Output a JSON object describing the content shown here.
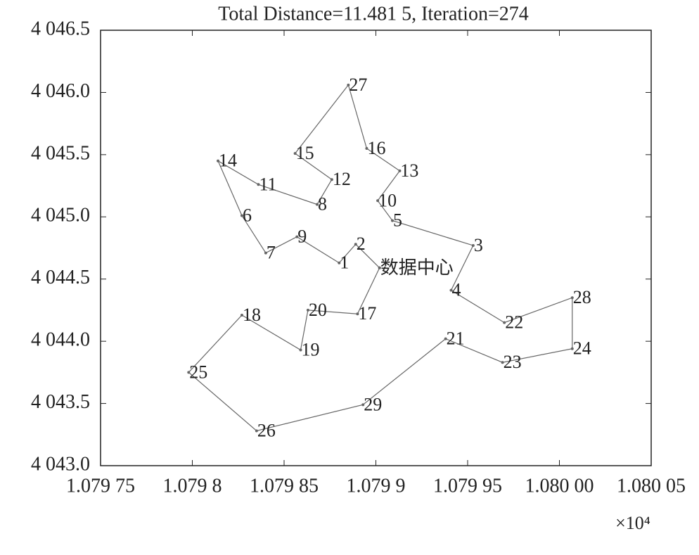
{
  "chart_data": {
    "type": "line",
    "title": "Total Distance=11.481 5, Iteration=274",
    "x_multiplier": "×10⁴",
    "color": "#666666",
    "point_labels": [
      "数据中心",
      "2",
      "1",
      "9",
      "7",
      "6",
      "14",
      "11",
      "8",
      "12",
      "15",
      "27",
      "16",
      "13",
      "10",
      "5",
      "3",
      "4",
      "22",
      "28",
      "24",
      "23",
      "21",
      "29",
      "26",
      "25",
      "18",
      "19",
      "20",
      "17",
      null
    ],
    "x": [
      1.079902,
      1.079889,
      1.07988,
      1.079857,
      1.07984,
      1.079827,
      1.079814,
      1.079836,
      1.079868,
      1.079876,
      1.079856,
      1.079885,
      1.079895,
      1.079913,
      1.079901,
      1.079909,
      1.079953,
      1.079941,
      1.07997,
      1.080007,
      1.080007,
      1.079969,
      1.079938,
      1.079893,
      1.079835,
      1.079798,
      1.079827,
      1.079859,
      1.079863,
      1.07989,
      1.079902
    ],
    "values": [
      4044.59,
      4044.78,
      4044.63,
      4044.84,
      4044.71,
      4045.01,
      4045.45,
      4045.26,
      4045.1,
      4045.3,
      4045.51,
      4046.06,
      4045.55,
      4045.37,
      4045.13,
      4044.97,
      4044.77,
      4044.41,
      4044.15,
      4044.35,
      4043.94,
      4043.83,
      4044.02,
      4043.49,
      4043.28,
      4043.75,
      4044.21,
      4043.93,
      4044.25,
      4044.22,
      4044.59
    ],
    "xlim": [
      1.07975,
      1.08005
    ],
    "xticks": [
      {
        "value": 1.07975,
        "label": "1.079 75"
      },
      {
        "value": 1.0798,
        "label": "1.079 8"
      },
      {
        "value": 1.07985,
        "label": "1.079 85"
      },
      {
        "value": 1.0799,
        "label": "1.079 9"
      },
      {
        "value": 1.07995,
        "label": "1.079 95"
      },
      {
        "value": 1.08,
        "label": "1.080 00"
      },
      {
        "value": 1.08005,
        "label": "1.080 05"
      }
    ],
    "ylim": [
      4043.0,
      4046.5
    ],
    "yticks": [
      {
        "value": 4043.0,
        "label": "4 043.0"
      },
      {
        "value": 4043.5,
        "label": "4 043.5"
      },
      {
        "value": 4044.0,
        "label": "4 044.0"
      },
      {
        "value": 4044.5,
        "label": "4 044.5"
      },
      {
        "value": 4045.0,
        "label": "4 045.0"
      },
      {
        "value": 4045.5,
        "label": "4 045.5"
      },
      {
        "value": 4046.0,
        "label": "4 046.0"
      },
      {
        "value": 4046.5,
        "label": "4 046.5"
      }
    ],
    "grid": false
  }
}
